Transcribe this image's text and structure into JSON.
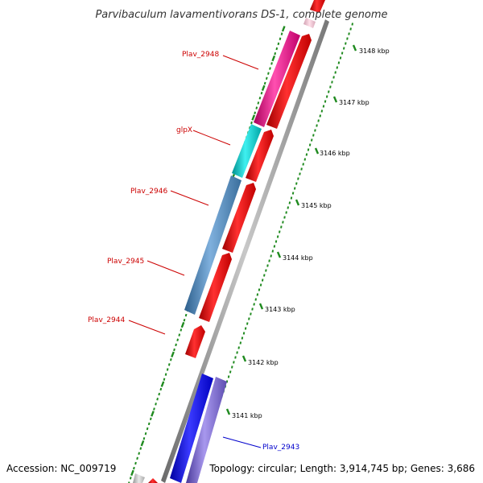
{
  "title": "Parvibaculum lavamentivorans DS-1, complete genome",
  "footer": {
    "accession": "Accession: NC_009719",
    "stats": "Topology: circular; Length: 3,914,745 bp; Genes: 3,686"
  },
  "colors": {
    "tick": "#1f8a1f",
    "label_red": "#cc0000",
    "label_blue": "#0000cc",
    "backbone": "#8c8c8c"
  },
  "ticks": [
    {
      "label": "3148 kbp",
      "kbp": 3148
    },
    {
      "label": "3147 kbp",
      "kbp": 3147
    },
    {
      "label": "3146 kbp",
      "kbp": 3146
    },
    {
      "label": "3145 kbp",
      "kbp": 3145
    },
    {
      "label": "3144 kbp",
      "kbp": 3144
    },
    {
      "label": "3143 kbp",
      "kbp": 3143
    },
    {
      "label": "3142 kbp",
      "kbp": 3142
    },
    {
      "label": "3141 kbp",
      "kbp": 3141
    }
  ],
  "genes": [
    {
      "name": "Plav_2948",
      "label_color": "#cc0000"
    },
    {
      "name": "glpX",
      "label_color": "#cc0000"
    },
    {
      "name": "Plav_2946",
      "label_color": "#cc0000"
    },
    {
      "name": "Plav_2945",
      "label_color": "#cc0000"
    },
    {
      "name": "Plav_2944",
      "label_color": "#cc0000"
    },
    {
      "name": "Plav_2943",
      "label_color": "#0000cc"
    }
  ]
}
